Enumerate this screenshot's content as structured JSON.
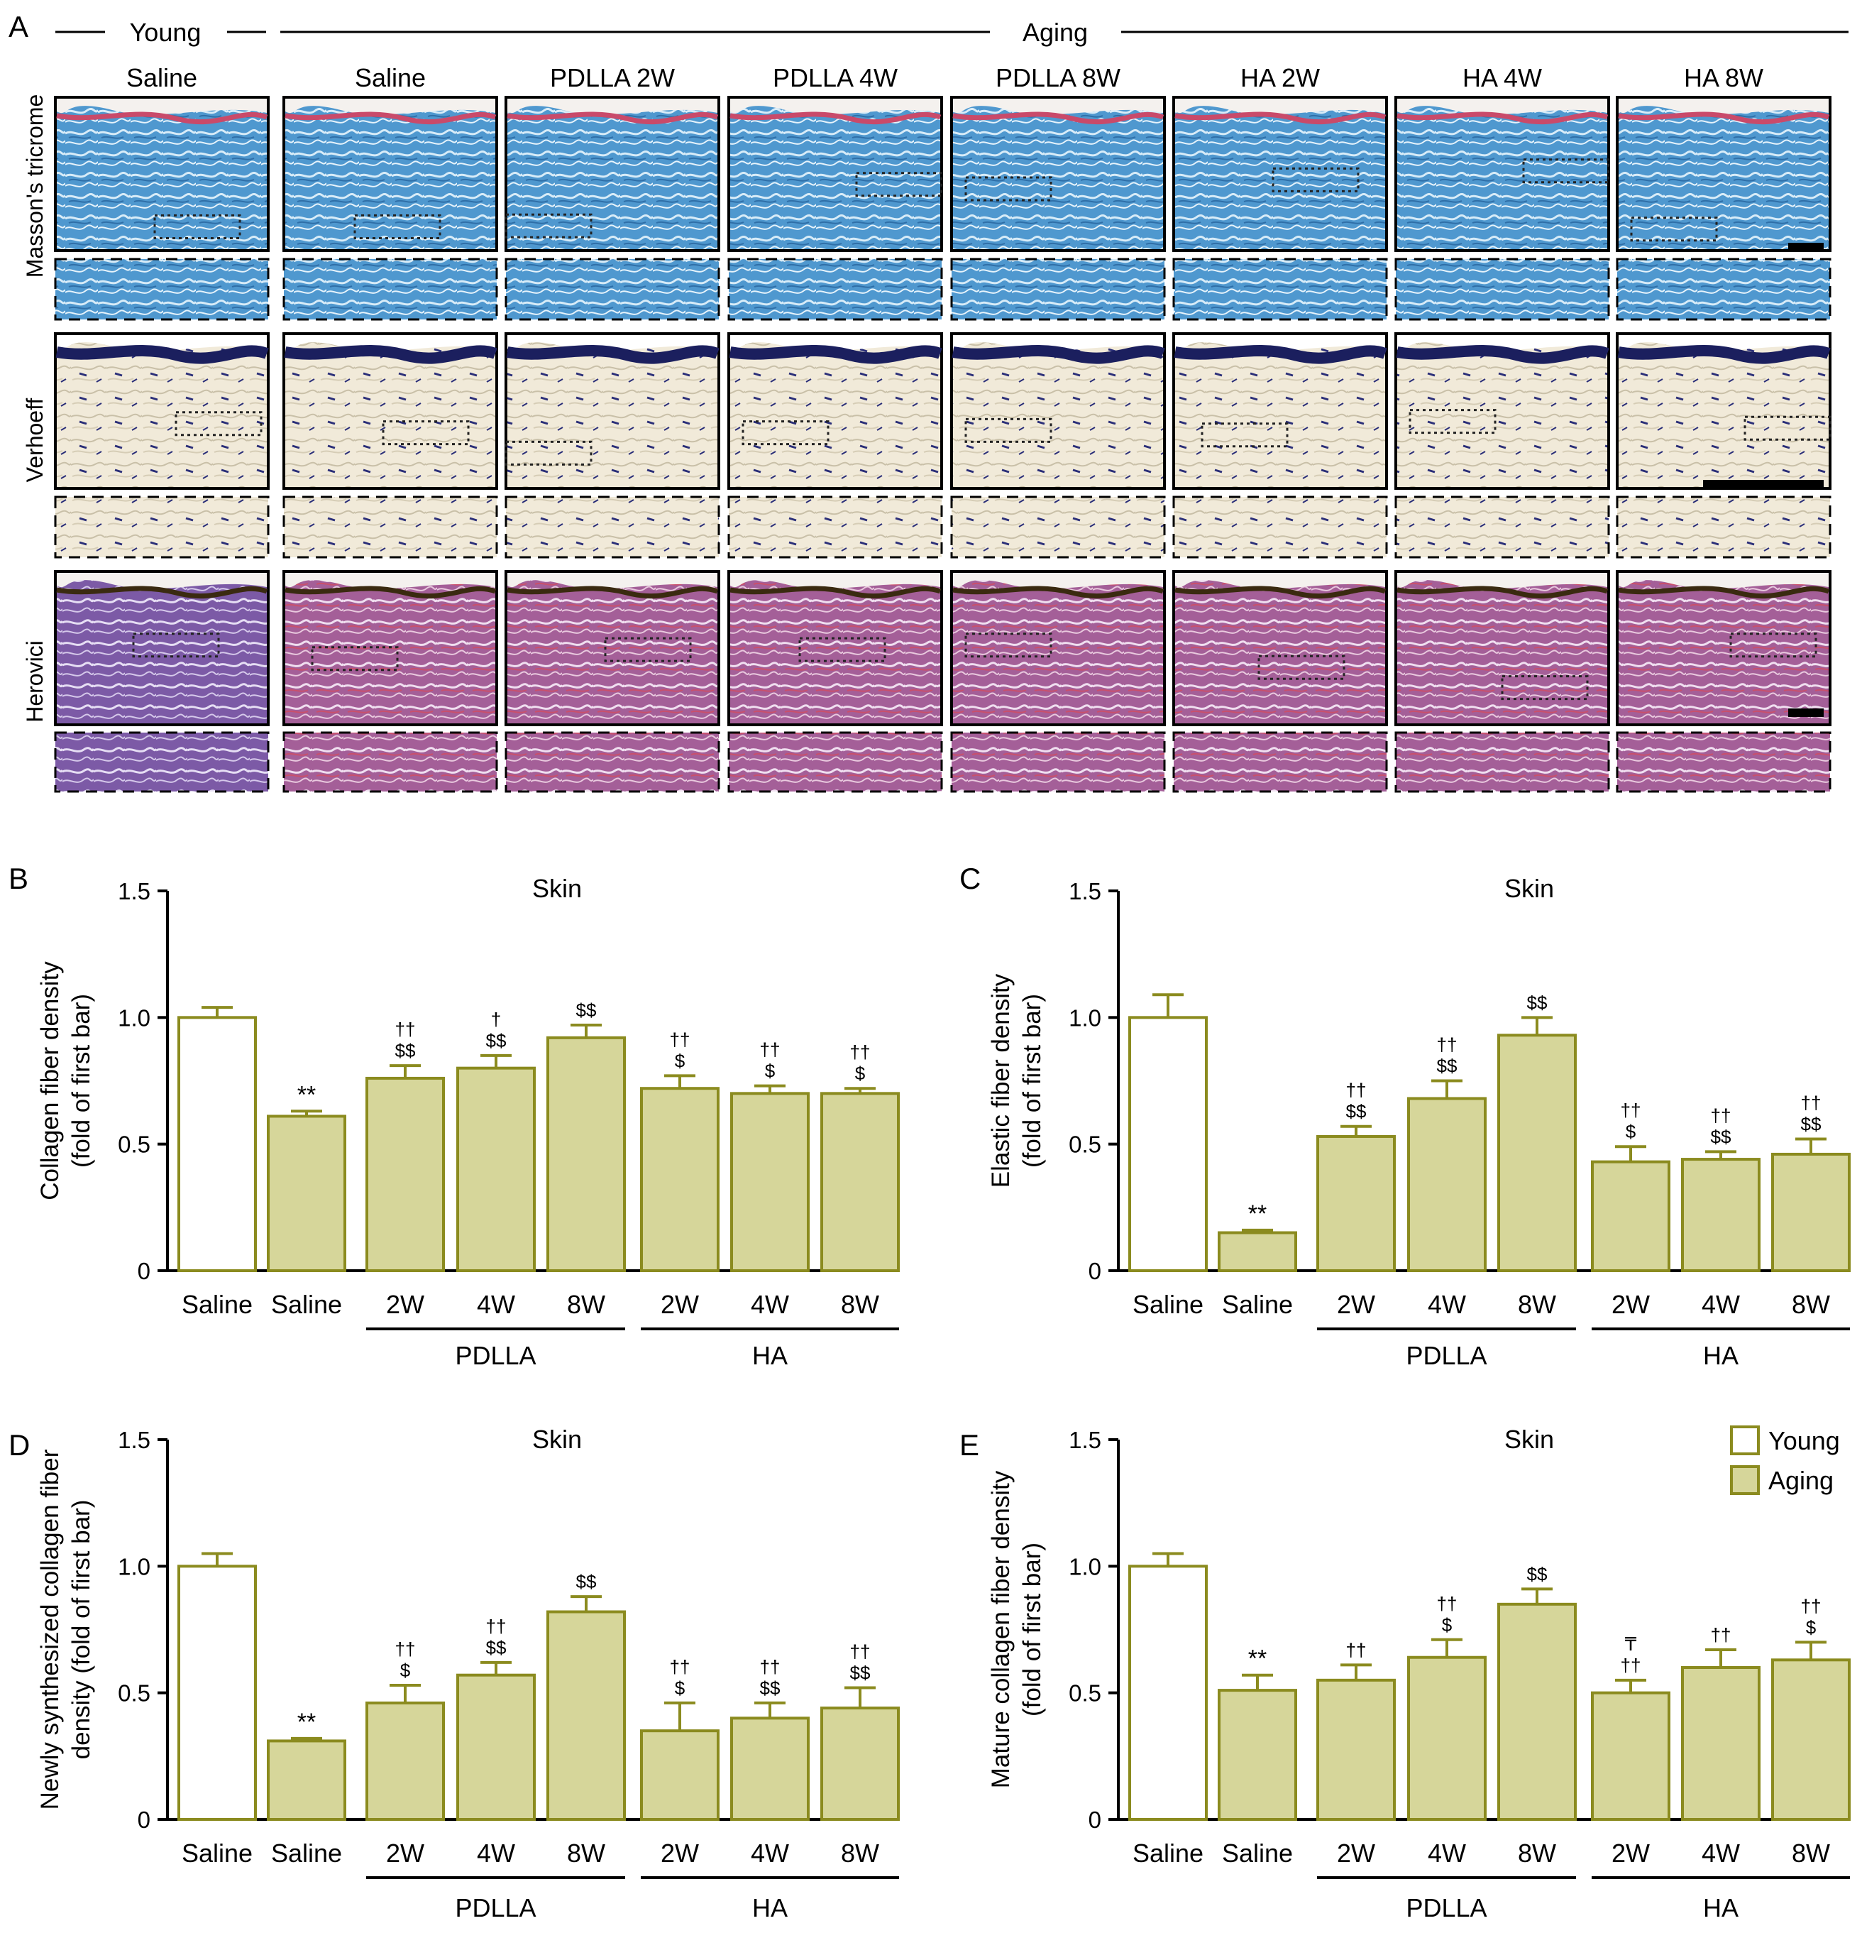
{
  "panel_a": {
    "letter": "A",
    "group_young": "Young",
    "group_aging": "Aging",
    "columns": [
      "Saline",
      "Saline",
      "PDLLA 2W",
      "PDLLA 4W",
      "PDLLA 8W",
      "HA 2W",
      "HA 4W",
      "HA 8W"
    ],
    "rows": [
      {
        "label": "Masson's tricrome",
        "color": "#5a9fd0",
        "accent": "#c94a6a"
      },
      {
        "label": "Verhoeff",
        "color": "#ece4cf",
        "accent": "#1b1f5e"
      },
      {
        "label": "Herovici",
        "color": "#8e5aa8",
        "accent": "#d0506c"
      }
    ]
  },
  "legend": {
    "young": "Young",
    "aging": "Aging"
  },
  "colors": {
    "aging_fill": "#d6d69a",
    "aging_stroke": "#8b8b1f",
    "young_fill": "#ffffff"
  },
  "chart_data": [
    {
      "letter": "B",
      "type": "bar",
      "title": "Skin",
      "ylabel": [
        "Collagen fiber density",
        "(fold of first bar)"
      ],
      "ylim": [
        0,
        1.5
      ],
      "yticks": [
        "0",
        "0.5",
        "1.0",
        "1.5"
      ],
      "categories": [
        "Saline",
        "Saline",
        "2W",
        "4W",
        "8W",
        "2W",
        "4W",
        "8W"
      ],
      "groups": [
        "PDLLA",
        "HA"
      ],
      "values": [
        1.0,
        0.61,
        0.76,
        0.8,
        0.92,
        0.72,
        0.7,
        0.7
      ],
      "errors": [
        0.04,
        0.02,
        0.05,
        0.05,
        0.05,
        0.05,
        0.03,
        0.02
      ],
      "annotations": [
        [],
        [
          "**"
        ],
        [
          "††",
          "$$"
        ],
        [
          "†",
          "$$"
        ],
        [
          "$$"
        ],
        [
          "††",
          "$"
        ],
        [
          "††",
          "$"
        ],
        [
          "††",
          "$"
        ]
      ]
    },
    {
      "letter": "C",
      "type": "bar",
      "title": "Skin",
      "ylabel": [
        "Elastic fiber density",
        "(fold of first bar)"
      ],
      "ylim": [
        0,
        1.5
      ],
      "yticks": [
        "0",
        "0.5",
        "1.0",
        "1.5"
      ],
      "categories": [
        "Saline",
        "Saline",
        "2W",
        "4W",
        "8W",
        "2W",
        "4W",
        "8W"
      ],
      "groups": [
        "PDLLA",
        "HA"
      ],
      "values": [
        1.0,
        0.15,
        0.53,
        0.68,
        0.93,
        0.43,
        0.44,
        0.46
      ],
      "errors": [
        0.09,
        0.01,
        0.04,
        0.07,
        0.07,
        0.06,
        0.03,
        0.06
      ],
      "annotations": [
        [],
        [
          "**"
        ],
        [
          "††",
          "$$"
        ],
        [
          "††",
          "$$"
        ],
        [
          "$$"
        ],
        [
          "††",
          "$"
        ],
        [
          "††",
          "$$"
        ],
        [
          "††",
          "$$"
        ]
      ]
    },
    {
      "letter": "D",
      "type": "bar",
      "title": "Skin",
      "ylabel": [
        "Newly synthesized collagen fiber",
        "density (fold of first bar)"
      ],
      "ylim": [
        0,
        1.5
      ],
      "yticks": [
        "0",
        "0.5",
        "1.0",
        "1.5"
      ],
      "categories": [
        "Saline",
        "Saline",
        "2W",
        "4W",
        "8W",
        "2W",
        "4W",
        "8W"
      ],
      "groups": [
        "PDLLA",
        "HA"
      ],
      "values": [
        1.0,
        0.31,
        0.46,
        0.57,
        0.82,
        0.35,
        0.4,
        0.44
      ],
      "errors": [
        0.05,
        0.01,
        0.07,
        0.05,
        0.06,
        0.11,
        0.06,
        0.08
      ],
      "annotations": [
        [],
        [
          "**"
        ],
        [
          "††",
          "$"
        ],
        [
          "††",
          "$$"
        ],
        [
          "$$"
        ],
        [
          "††",
          "$"
        ],
        [
          "††",
          "$$"
        ],
        [
          "††",
          "$$"
        ]
      ]
    },
    {
      "letter": "E",
      "type": "bar",
      "title": "Skin",
      "ylabel": [
        "Mature collagen fiber density",
        "(fold of first bar)"
      ],
      "ylim": [
        0,
        1.5
      ],
      "yticks": [
        "0",
        "0.5",
        "1.0",
        "1.5"
      ],
      "categories": [
        "Saline",
        "Saline",
        "2W",
        "4W",
        "8W",
        "2W",
        "4W",
        "8W"
      ],
      "groups": [
        "PDLLA",
        "HA"
      ],
      "values": [
        1.0,
        0.51,
        0.55,
        0.64,
        0.85,
        0.5,
        0.6,
        0.63
      ],
      "errors": [
        0.05,
        0.06,
        0.06,
        0.07,
        0.06,
        0.05,
        0.07,
        0.07
      ],
      "annotations": [
        [],
        [
          "**"
        ],
        [
          "††"
        ],
        [
          "††",
          "$"
        ],
        [
          "$$"
        ],
        [
          "₸",
          "††"
        ],
        [
          "††"
        ],
        [
          "††",
          "$"
        ]
      ],
      "legend_entries": [
        "Young",
        "Aging"
      ]
    }
  ]
}
